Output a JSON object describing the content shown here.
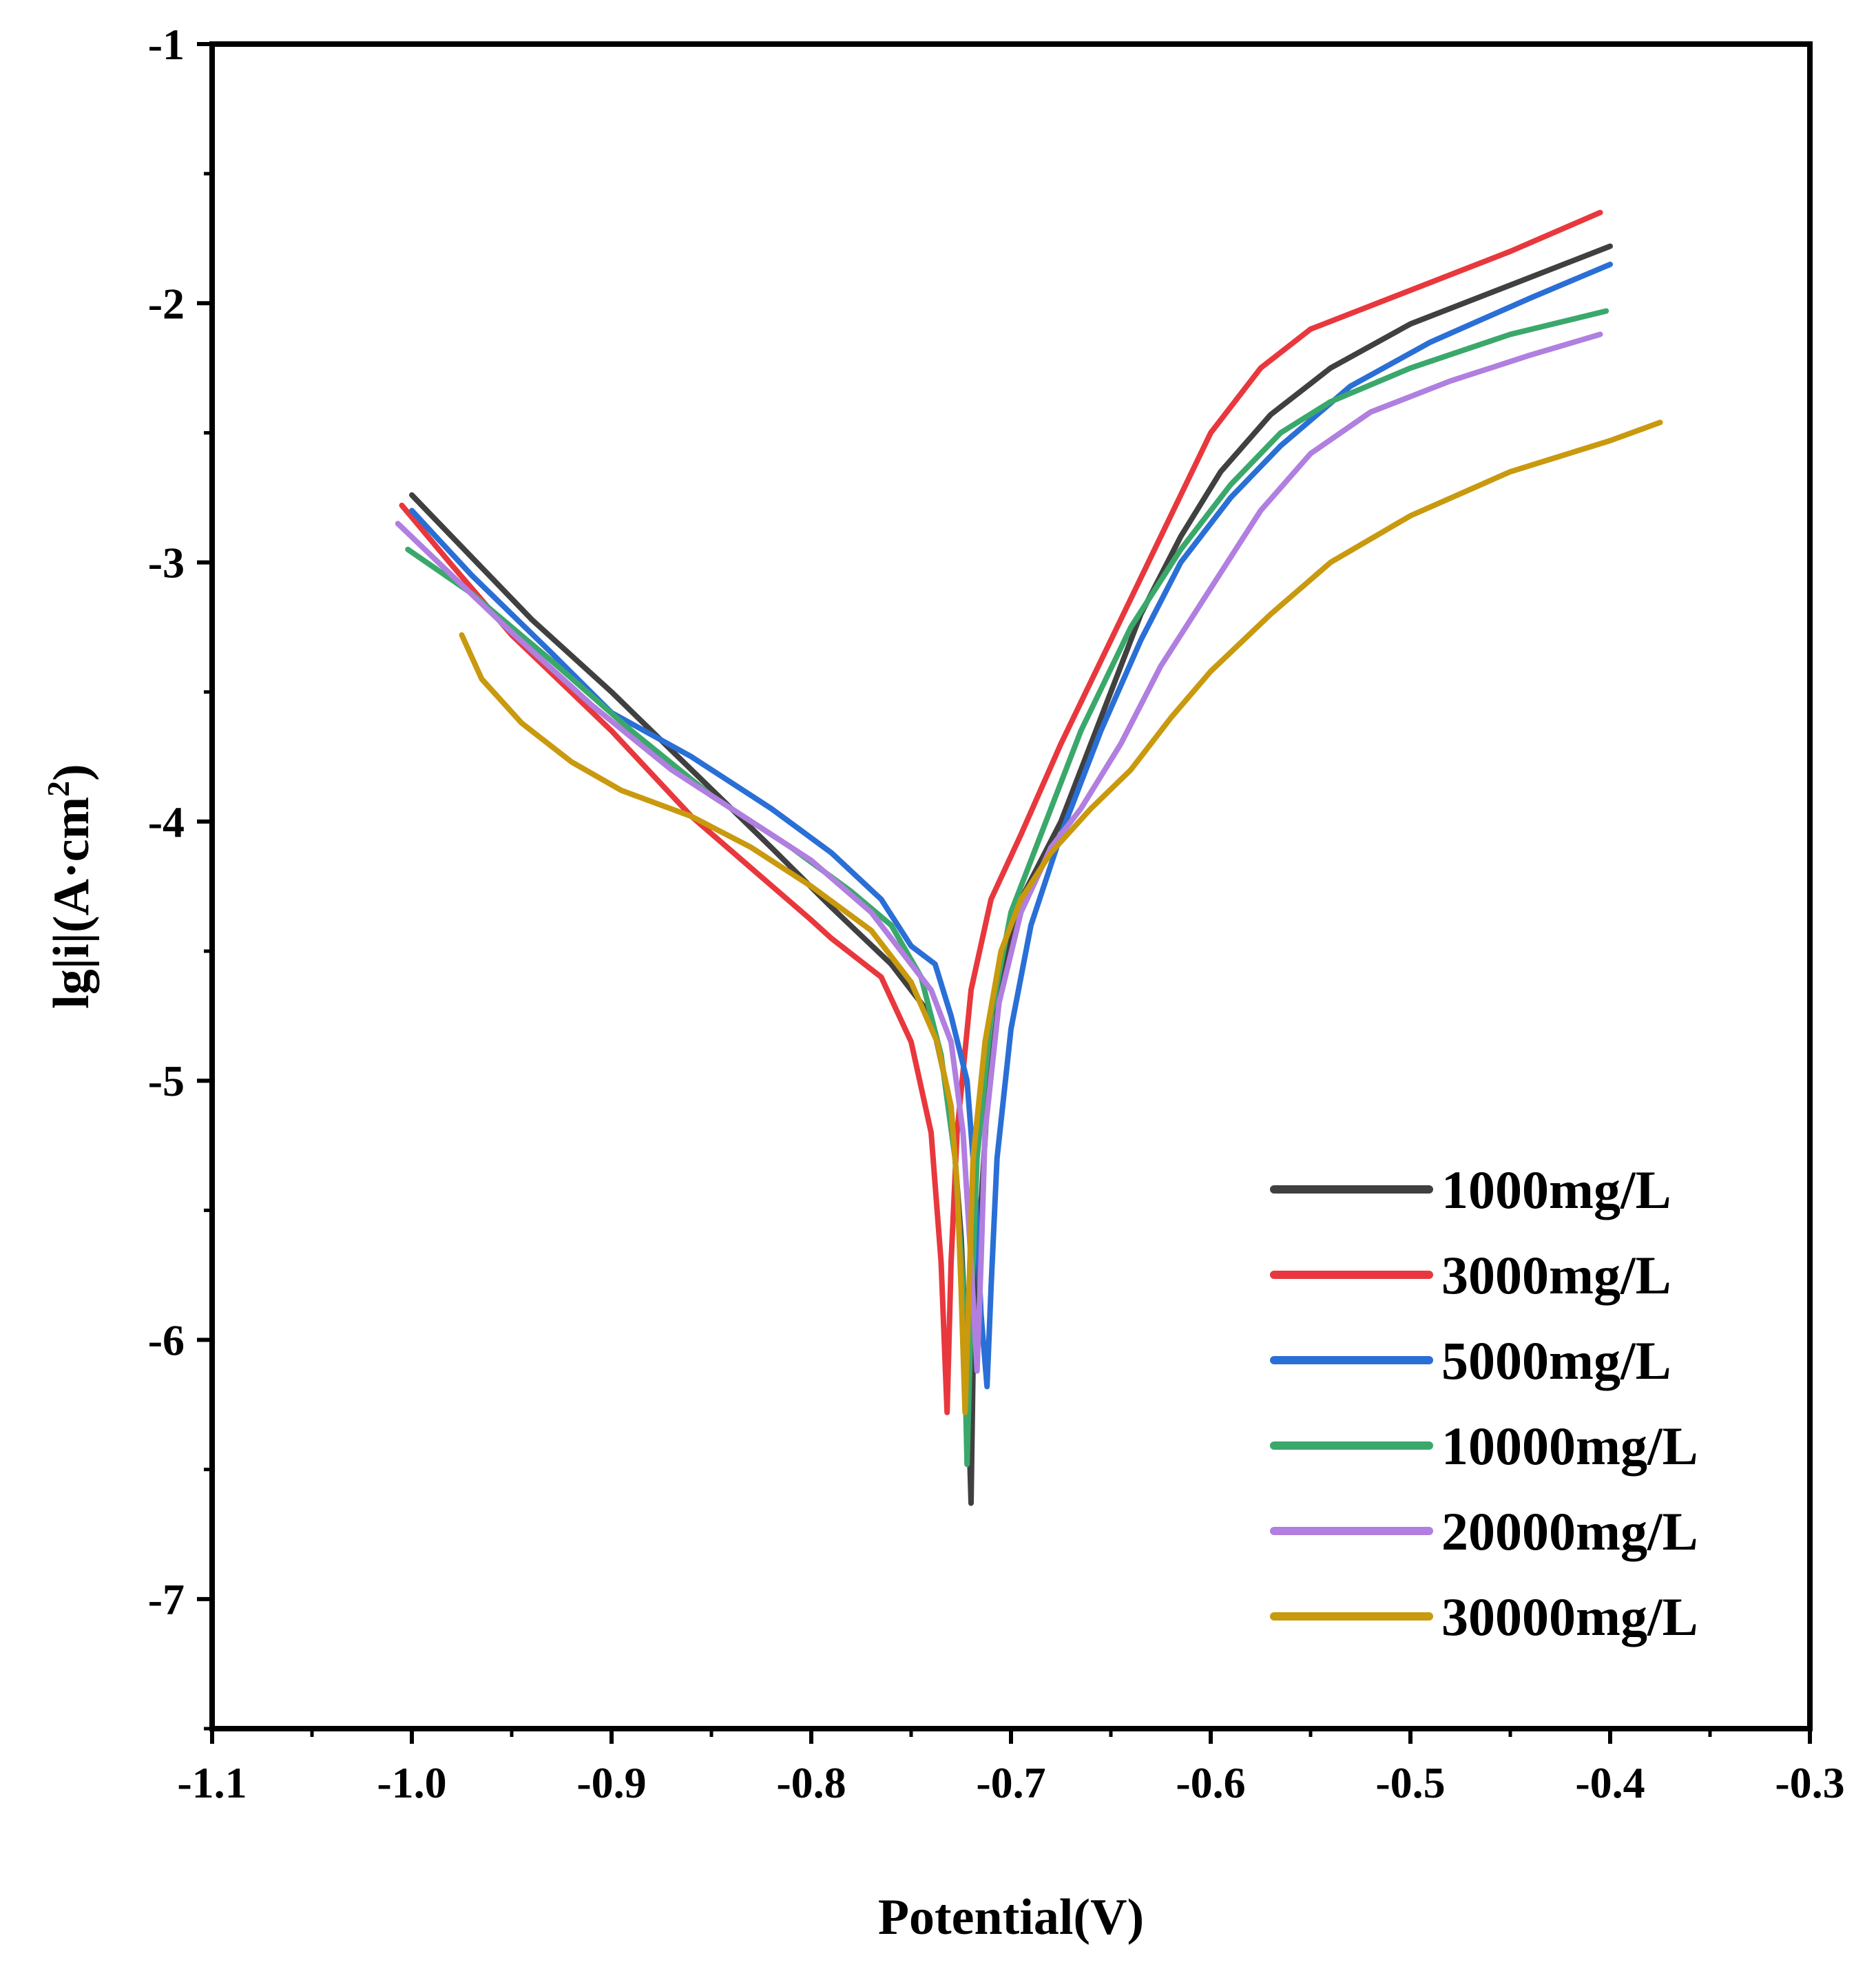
{
  "chart_data": {
    "type": "line",
    "title": "",
    "xlabel": "Potential(V)",
    "ylabel_main": "lg|i|(A·cm",
    "ylabel_sup": "2",
    "ylabel_close": ")",
    "xlim": [
      -1.1,
      -0.3
    ],
    "ylim": [
      -7.5,
      -1
    ],
    "xticks": [
      -1.1,
      -1.0,
      -0.9,
      -0.8,
      -0.7,
      -0.6,
      -0.5,
      -0.4,
      -0.3
    ],
    "xtick_labels": [
      "-1.1",
      "-1.0",
      "-0.9",
      "-0.8",
      "-0.7",
      "-0.6",
      "-0.5",
      "-0.4",
      "-0.3"
    ],
    "yticks": [
      -1,
      -2,
      -3,
      -4,
      -5,
      -6,
      -7
    ],
    "ytick_labels": [
      "-1",
      "-2",
      "-3",
      "-4",
      "-5",
      "-6",
      "-7"
    ],
    "legend_position": "bottom-right",
    "series": [
      {
        "name": "1000mg/L",
        "color": "#404040",
        "points": [
          [
            -1.0,
            -2.74
          ],
          [
            -0.97,
            -2.98
          ],
          [
            -0.94,
            -3.22
          ],
          [
            -0.9,
            -3.5
          ],
          [
            -0.86,
            -3.8
          ],
          [
            -0.82,
            -4.1
          ],
          [
            -0.79,
            -4.33
          ],
          [
            -0.76,
            -4.55
          ],
          [
            -0.74,
            -4.75
          ],
          [
            -0.73,
            -5.1
          ],
          [
            -0.725,
            -5.6
          ],
          [
            -0.722,
            -6.1
          ],
          [
            -0.72,
            -6.63
          ],
          [
            -0.719,
            -6.1
          ],
          [
            -0.716,
            -5.6
          ],
          [
            -0.712,
            -5.1
          ],
          [
            -0.705,
            -4.6
          ],
          [
            -0.695,
            -4.3
          ],
          [
            -0.675,
            -4.0
          ],
          [
            -0.655,
            -3.6
          ],
          [
            -0.635,
            -3.2
          ],
          [
            -0.615,
            -2.9
          ],
          [
            -0.595,
            -2.65
          ],
          [
            -0.57,
            -2.43
          ],
          [
            -0.54,
            -2.25
          ],
          [
            -0.5,
            -2.08
          ],
          [
            -0.45,
            -1.93
          ],
          [
            -0.4,
            -1.78
          ]
        ]
      },
      {
        "name": "3000mg/L",
        "color": "#e8383d",
        "points": [
          [
            -1.005,
            -2.78
          ],
          [
            -0.98,
            -3.01
          ],
          [
            -0.95,
            -3.28
          ],
          [
            -0.9,
            -3.65
          ],
          [
            -0.86,
            -3.98
          ],
          [
            -0.83,
            -4.18
          ],
          [
            -0.8,
            -4.38
          ],
          [
            -0.79,
            -4.45
          ],
          [
            -0.765,
            -4.6
          ],
          [
            -0.75,
            -4.85
          ],
          [
            -0.74,
            -5.2
          ],
          [
            -0.735,
            -5.7
          ],
          [
            -0.732,
            -6.28
          ],
          [
            -0.73,
            -5.7
          ],
          [
            -0.727,
            -5.2
          ],
          [
            -0.72,
            -4.65
          ],
          [
            -0.71,
            -4.3
          ],
          [
            -0.695,
            -4.05
          ],
          [
            -0.675,
            -3.7
          ],
          [
            -0.65,
            -3.3
          ],
          [
            -0.625,
            -2.9
          ],
          [
            -0.6,
            -2.5
          ],
          [
            -0.575,
            -2.25
          ],
          [
            -0.55,
            -2.1
          ],
          [
            -0.5,
            -1.95
          ],
          [
            -0.45,
            -1.8
          ],
          [
            -0.405,
            -1.65
          ]
        ]
      },
      {
        "name": "5000mg/L",
        "color": "#2a6fd6",
        "points": [
          [
            -1.0,
            -2.8
          ],
          [
            -0.97,
            -3.05
          ],
          [
            -0.93,
            -3.35
          ],
          [
            -0.9,
            -3.58
          ],
          [
            -0.86,
            -3.75
          ],
          [
            -0.82,
            -3.95
          ],
          [
            -0.79,
            -4.12
          ],
          [
            -0.765,
            -4.3
          ],
          [
            -0.75,
            -4.48
          ],
          [
            -0.738,
            -4.55
          ],
          [
            -0.73,
            -4.75
          ],
          [
            -0.722,
            -5.0
          ],
          [
            -0.718,
            -5.4
          ],
          [
            -0.715,
            -5.9
          ],
          [
            -0.712,
            -6.18
          ],
          [
            -0.71,
            -5.8
          ],
          [
            -0.707,
            -5.3
          ],
          [
            -0.7,
            -4.8
          ],
          [
            -0.69,
            -4.4
          ],
          [
            -0.675,
            -4.05
          ],
          [
            -0.655,
            -3.65
          ],
          [
            -0.635,
            -3.3
          ],
          [
            -0.615,
            -3.0
          ],
          [
            -0.59,
            -2.75
          ],
          [
            -0.565,
            -2.55
          ],
          [
            -0.53,
            -2.32
          ],
          [
            -0.49,
            -2.15
          ],
          [
            -0.44,
            -1.98
          ],
          [
            -0.4,
            -1.85
          ]
        ]
      },
      {
        "name": "10000mg/L",
        "color": "#3ba86b",
        "points": [
          [
            -1.002,
            -2.95
          ],
          [
            -0.97,
            -3.12
          ],
          [
            -0.93,
            -3.38
          ],
          [
            -0.89,
            -3.65
          ],
          [
            -0.85,
            -3.9
          ],
          [
            -0.81,
            -4.1
          ],
          [
            -0.78,
            -4.27
          ],
          [
            -0.76,
            -4.4
          ],
          [
            -0.745,
            -4.6
          ],
          [
            -0.735,
            -4.9
          ],
          [
            -0.728,
            -5.3
          ],
          [
            -0.724,
            -5.8
          ],
          [
            -0.722,
            -6.48
          ],
          [
            -0.72,
            -5.9
          ],
          [
            -0.717,
            -5.3
          ],
          [
            -0.71,
            -4.75
          ],
          [
            -0.7,
            -4.35
          ],
          [
            -0.685,
            -4.05
          ],
          [
            -0.665,
            -3.65
          ],
          [
            -0.64,
            -3.25
          ],
          [
            -0.615,
            -2.95
          ],
          [
            -0.59,
            -2.7
          ],
          [
            -0.565,
            -2.5
          ],
          [
            -0.54,
            -2.38
          ],
          [
            -0.5,
            -2.25
          ],
          [
            -0.45,
            -2.12
          ],
          [
            -0.402,
            -2.03
          ]
        ]
      },
      {
        "name": "20000mg/L",
        "color": "#b07fe0",
        "points": [
          [
            -1.007,
            -2.85
          ],
          [
            -0.98,
            -3.05
          ],
          [
            -0.95,
            -3.27
          ],
          [
            -0.91,
            -3.55
          ],
          [
            -0.87,
            -3.8
          ],
          [
            -0.83,
            -4.0
          ],
          [
            -0.8,
            -4.15
          ],
          [
            -0.77,
            -4.35
          ],
          [
            -0.75,
            -4.55
          ],
          [
            -0.74,
            -4.65
          ],
          [
            -0.73,
            -4.85
          ],
          [
            -0.724,
            -5.2
          ],
          [
            -0.72,
            -5.7
          ],
          [
            -0.717,
            -6.12
          ],
          [
            -0.715,
            -5.7
          ],
          [
            -0.713,
            -5.2
          ],
          [
            -0.706,
            -4.7
          ],
          [
            -0.695,
            -4.35
          ],
          [
            -0.68,
            -4.1
          ],
          [
            -0.665,
            -3.95
          ],
          [
            -0.645,
            -3.7
          ],
          [
            -0.625,
            -3.4
          ],
          [
            -0.6,
            -3.1
          ],
          [
            -0.575,
            -2.8
          ],
          [
            -0.55,
            -2.58
          ],
          [
            -0.52,
            -2.42
          ],
          [
            -0.48,
            -2.3
          ],
          [
            -0.44,
            -2.2
          ],
          [
            -0.405,
            -2.12
          ]
        ]
      },
      {
        "name": "30000mg/L",
        "color": "#c9990e",
        "points": [
          [
            -0.975,
            -3.28
          ],
          [
            -0.965,
            -3.45
          ],
          [
            -0.945,
            -3.62
          ],
          [
            -0.92,
            -3.77
          ],
          [
            -0.895,
            -3.88
          ],
          [
            -0.86,
            -3.98
          ],
          [
            -0.83,
            -4.1
          ],
          [
            -0.8,
            -4.25
          ],
          [
            -0.77,
            -4.42
          ],
          [
            -0.75,
            -4.62
          ],
          [
            -0.737,
            -4.85
          ],
          [
            -0.73,
            -5.1
          ],
          [
            -0.727,
            -5.4
          ],
          [
            -0.725,
            -5.8
          ],
          [
            -0.723,
            -6.28
          ],
          [
            -0.721,
            -5.8
          ],
          [
            -0.719,
            -5.3
          ],
          [
            -0.713,
            -4.85
          ],
          [
            -0.705,
            -4.5
          ],
          [
            -0.695,
            -4.3
          ],
          [
            -0.68,
            -4.12
          ],
          [
            -0.66,
            -3.95
          ],
          [
            -0.64,
            -3.8
          ],
          [
            -0.62,
            -3.6
          ],
          [
            -0.6,
            -3.42
          ],
          [
            -0.57,
            -3.2
          ],
          [
            -0.54,
            -3.0
          ],
          [
            -0.5,
            -2.82
          ],
          [
            -0.45,
            -2.65
          ],
          [
            -0.4,
            -2.53
          ],
          [
            -0.375,
            -2.46
          ]
        ]
      }
    ]
  }
}
